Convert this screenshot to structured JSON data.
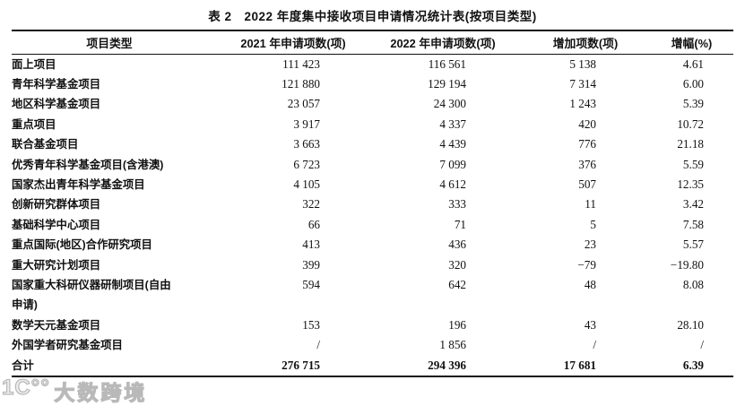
{
  "title": "表 2　2022 年度集中接收项目申请情况统计表(按项目类型)",
  "table": {
    "columns": [
      "项目类型",
      "2021 年申请项数(项)",
      "2022 年申请项数(项)",
      "增加项数(项)",
      "增幅(%)"
    ],
    "rows": [
      {
        "label": "面上项目",
        "v2021": "111 423",
        "v2022": "116 561",
        "increase": "5 138",
        "growth": "4.61"
      },
      {
        "label": "青年科学基金项目",
        "v2021": "121 880",
        "v2022": "129 194",
        "increase": "7 314",
        "growth": "6.00"
      },
      {
        "label": "地区科学基金项目",
        "v2021": "23 057",
        "v2022": "24 300",
        "increase": "1 243",
        "growth": "5.39"
      },
      {
        "label": "重点项目",
        "v2021": "3 917",
        "v2022": "4 337",
        "increase": "420",
        "growth": "10.72"
      },
      {
        "label": "联合基金项目",
        "v2021": "3 663",
        "v2022": "4 439",
        "increase": "776",
        "growth": "21.18"
      },
      {
        "label": "优秀青年科学基金项目(含港澳)",
        "v2021": "6 723",
        "v2022": "7 099",
        "increase": "376",
        "growth": "5.59"
      },
      {
        "label": "国家杰出青年科学基金项目",
        "v2021": "4 105",
        "v2022": "4 612",
        "increase": "507",
        "growth": "12.35"
      },
      {
        "label": "创新研究群体项目",
        "v2021": "322",
        "v2022": "333",
        "increase": "11",
        "growth": "3.42"
      },
      {
        "label": "基础科学中心项目",
        "v2021": "66",
        "v2022": "71",
        "increase": "5",
        "growth": "7.58"
      },
      {
        "label": "重点国际(地区)合作研究项目",
        "v2021": "413",
        "v2022": "436",
        "increase": "23",
        "growth": "5.57"
      },
      {
        "label": "重大研究计划项目",
        "v2021": "399",
        "v2022": "320",
        "increase": "−79",
        "growth": "−19.80"
      },
      {
        "label": "国家重大科研仪器研制项目(自由\n申请)",
        "two_line": true,
        "v2021": "594",
        "v2022": "642",
        "increase": "48",
        "growth": "8.08"
      },
      {
        "label": "数学天元基金项目",
        "v2021": "153",
        "v2022": "196",
        "increase": "43",
        "growth": "28.10"
      },
      {
        "label": "外国学者研究基金项目",
        "v2021": "/",
        "v2022": "1 856",
        "increase": "/",
        "growth": "/"
      },
      {
        "label": "合计",
        "is_total": true,
        "v2021": "276 715",
        "v2022": "294 396",
        "increase": "17 681",
        "growth": "6.39"
      }
    ]
  },
  "watermark": {
    "logo": "1C°°",
    "text": "大数跨境"
  },
  "colors": {
    "rule": "#111111",
    "text": "#111111",
    "watermark": "#bdbdbd"
  }
}
